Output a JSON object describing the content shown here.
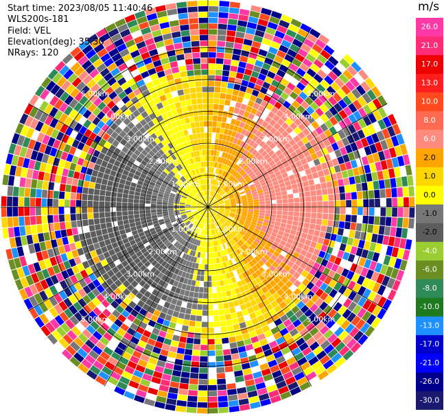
{
  "header": {
    "start_time": "Start time: 2023/08/05 11:40:46",
    "instrument": "WLS200s-181",
    "field": "Field: VEL",
    "elevation": "Elevation(deg): 35.30",
    "nrays": "NRays: 120"
  },
  "colorbar": {
    "unit": "m/s",
    "ticks": [
      "26.0",
      "21.0",
      "17.0",
      "13.0",
      "10.0",
      "8.0",
      "6.0",
      "2.0",
      "1.0",
      "0.0",
      "-1.0",
      "-2.0",
      "-4.0",
      "-6.0",
      "-8.0",
      "-10.0",
      "-13.0",
      "-17.0",
      "-21.0",
      "-26.0",
      "-30.0"
    ],
    "colors": [
      "#ff3aa6",
      "#ff2d77",
      "#ee0000",
      "#ff1f1f",
      "#ff4a1f",
      "#ff6a52",
      "#ff8b7e",
      "#ffa500",
      "#ffd700",
      "#ffff00",
      "#777777",
      "#5c5c5c",
      "#9acd32",
      "#6b8e23",
      "#2e8b57",
      "#1e7a1e",
      "#1e90ff",
      "#0000cd",
      "#0000ff",
      "#00008b",
      "#191970"
    ]
  },
  "chart_data": {
    "type": "ppi",
    "field": "VEL",
    "units": "m/s",
    "n_rays": 120,
    "elevation_deg": 35.3,
    "range_rings": [
      {
        "label": "1.00km",
        "km": 1.0
      },
      {
        "label": "2.00km",
        "km": 2.0
      },
      {
        "label": "3.00km",
        "km": 3.0
      },
      {
        "label": "4.00km",
        "km": 4.0
      },
      {
        "label": "5.00km",
        "km": 5.0
      }
    ],
    "vmin": -30,
    "vmax": 26
  }
}
